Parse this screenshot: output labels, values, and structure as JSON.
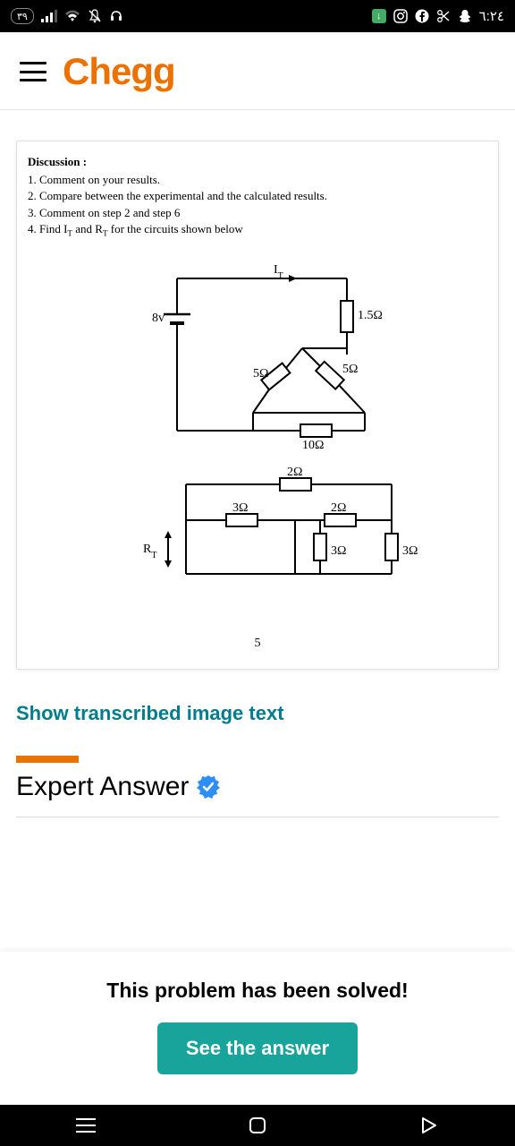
{
  "statusbar": {
    "notif_count": "٣٩",
    "time": "٦:٢٤"
  },
  "brand": {
    "name": "Chegg",
    "color": "#eb7100"
  },
  "discussion": {
    "heading": "Discussion :",
    "items": [
      "1. Comment on your results.",
      "2. Compare between the experimental and the calculated results.",
      "3. Comment on step 2 and step 6",
      "4. Find I_T and R_T for the circuits shown below"
    ]
  },
  "circuit": {
    "source_label": "8v",
    "top_current": "I_T",
    "r_1_5": "1.5Ω",
    "r_5_top": "5Ω",
    "r_5_right": "5Ω",
    "r_10": "10Ω",
    "r_2_top": "2Ω",
    "r_3_left": "3Ω",
    "r_2_right": "2Ω",
    "r_3_mid": "3Ω",
    "r_3_right": "3Ω",
    "rt_label": "R_T",
    "page_number": "5"
  },
  "links": {
    "transcribed": "Show transcribed image text",
    "transcribed_color": "#007c8f"
  },
  "expert": {
    "title": "Expert Answer",
    "bar_color": "#eb7100",
    "check_color": "#2f8ef4"
  },
  "solved": {
    "text": "This problem has been solved!",
    "button": "See the answer",
    "button_color": "#18a39b"
  }
}
